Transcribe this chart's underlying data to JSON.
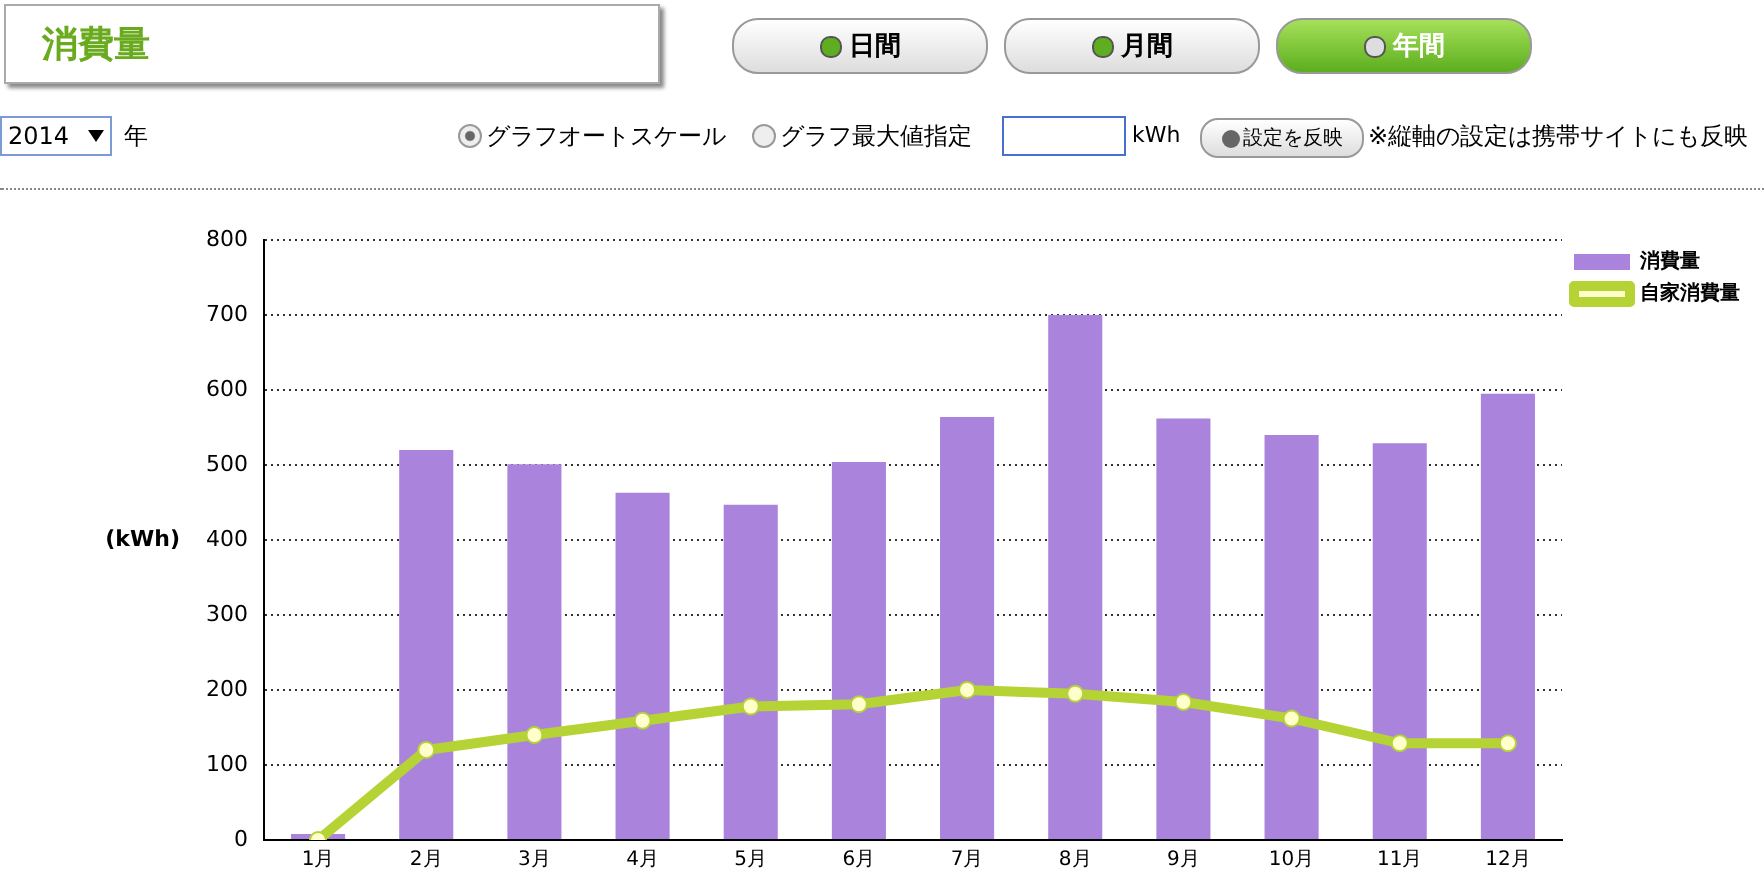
{
  "chart_data": {
    "type": "bar",
    "title": "消費量",
    "ylabel": "(kWh)",
    "categories": [
      "1月",
      "2月",
      "3月",
      "4月",
      "5月",
      "6月",
      "7月",
      "8月",
      "9月",
      "10月",
      "11月",
      "12月"
    ],
    "series": [
      {
        "name": "消費量",
        "color": "#aa84dc",
        "values": [
          8,
          520,
          501,
          463,
          447,
          504,
          564,
          700,
          562,
          540,
          529,
          595
        ]
      },
      {
        "name": "自家消費量",
        "type": "line",
        "color": "#b5d334",
        "values": [
          0,
          120,
          140,
          159,
          178,
          181,
          200,
          195,
          184,
          162,
          129,
          129
        ]
      }
    ],
    "ylim": [
      0,
      800
    ],
    "yticks": [
      0,
      100,
      200,
      300,
      400,
      500,
      600,
      700,
      800
    ],
    "grid": "y",
    "legend": "top right",
    "marker": "circle",
    "annotations": [
      "日間",
      "月間",
      "年間",
      "2014",
      "年",
      "グラフオートスケール",
      "グラフ最大値指定",
      "kWh",
      "設定を反映",
      "※縦軸の設定は携帯サイトにも反映"
    ]
  }
}
